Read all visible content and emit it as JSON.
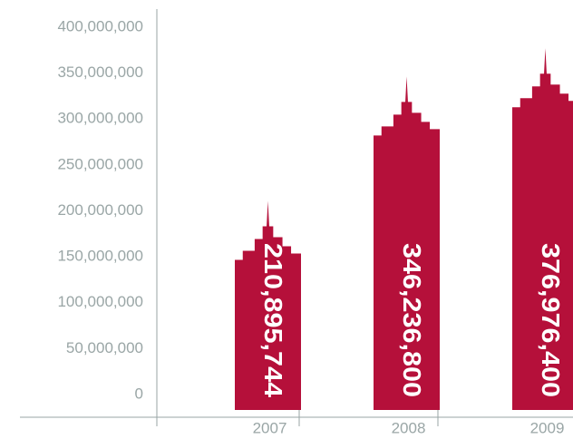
{
  "chart_data": {
    "type": "bar",
    "categories": [
      "2007",
      "2008",
      "2009"
    ],
    "values": [
      210895744,
      346236800,
      376976400
    ],
    "value_labels": [
      "210,895,744",
      "346,236,800",
      "376,976,400"
    ],
    "color": "#b5103a",
    "ylim": [
      0,
      400000000
    ],
    "yticks": [
      0,
      {
        "value": 50000000,
        "label": "50,000,000"
      },
      {
        "value": 100000000,
        "label": "100,000,000"
      },
      {
        "value": 150000000,
        "label": "150,000,000"
      },
      {
        "value": 200000000,
        "label": "200,000,000"
      },
      {
        "value": 250000000,
        "label": "250,000,000"
      },
      {
        "value": 300000000,
        "label": "300,000,000"
      },
      {
        "value": 350000000,
        "label": "350,000,000"
      },
      {
        "value": 400000000,
        "label": "400,000,000"
      }
    ]
  }
}
